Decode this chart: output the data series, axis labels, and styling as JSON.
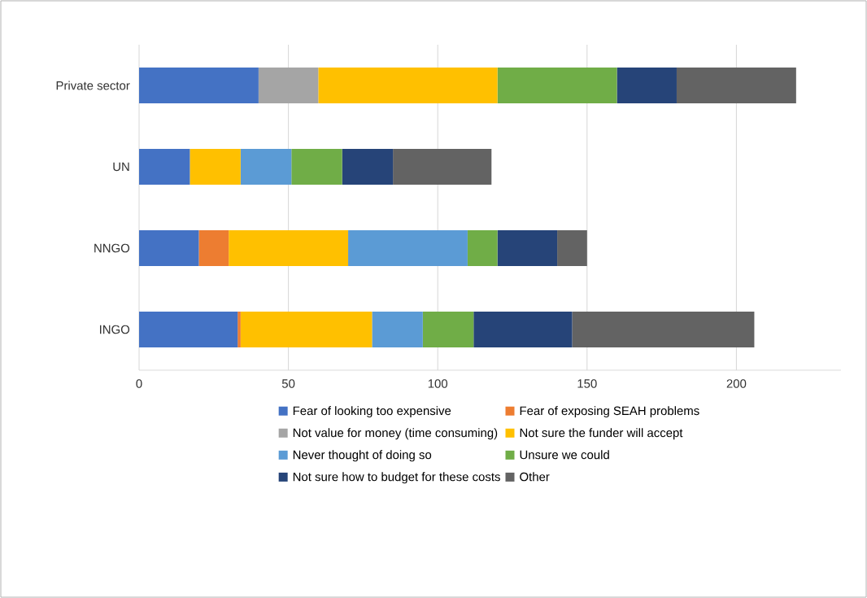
{
  "chart_data": {
    "type": "bar",
    "orientation": "horizontal",
    "stacked": true,
    "categories": [
      "Private sector",
      "UN",
      "NNGO",
      "INGO"
    ],
    "series": [
      {
        "name": "Fear of looking too expensive",
        "color": "#4472c4",
        "values": [
          40,
          17,
          20,
          33
        ]
      },
      {
        "name": "Fear of exposing SEAH problems",
        "color": "#ed7d31",
        "values": [
          0,
          0,
          10,
          1
        ]
      },
      {
        "name": "Not value for money (time consuming)",
        "color": "#a5a5a5",
        "values": [
          20,
          0,
          0,
          0
        ]
      },
      {
        "name": "Not sure the funder will accept",
        "color": "#ffc000",
        "values": [
          60,
          17,
          40,
          44
        ]
      },
      {
        "name": "Never thought of doing so",
        "color": "#5b9bd5",
        "values": [
          0,
          17,
          40,
          17
        ]
      },
      {
        "name": "Unsure we could",
        "color": "#70ad47",
        "values": [
          40,
          17,
          10,
          17
        ]
      },
      {
        "name": "Not sure how to budget for these costs",
        "color": "#264478",
        "values": [
          20,
          17,
          20,
          33
        ]
      },
      {
        "name": "Other",
        "color": "#636363",
        "values": [
          40,
          33,
          10,
          61
        ]
      }
    ],
    "xlim": [
      0,
      235
    ],
    "xticks": [
      0,
      50,
      100,
      150,
      200
    ],
    "grid": "x",
    "legend": "bottom"
  }
}
